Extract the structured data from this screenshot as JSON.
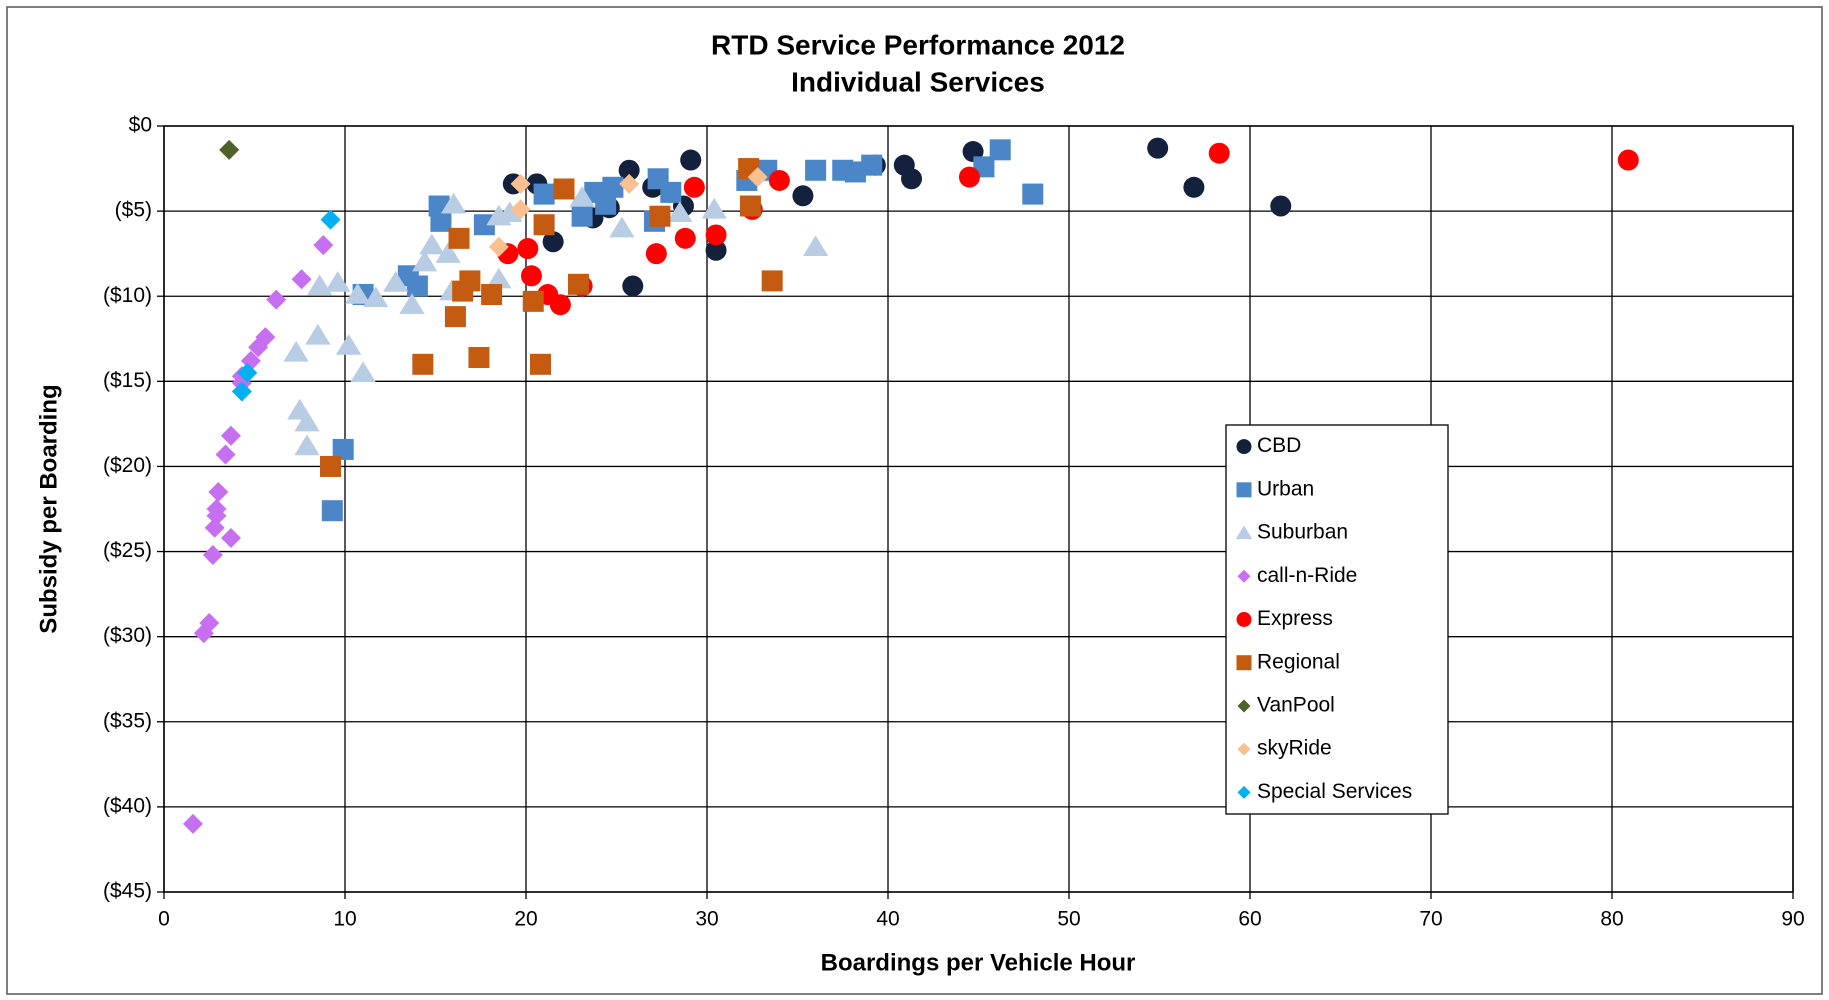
{
  "chart_data": {
    "type": "scatter",
    "title": "RTD Service Performance 2012",
    "subtitle": "Individual Services",
    "x_label": "Boardings per Vehicle Hour",
    "y_label": "Subsidy per Boarding",
    "xlim": [
      0,
      90
    ],
    "xticks": [
      0,
      10,
      20,
      30,
      40,
      50,
      60,
      70,
      80,
      90
    ],
    "ylim": [
      -45,
      0
    ],
    "yticks": [
      {
        "value": 0,
        "label": "$0"
      },
      {
        "value": -5,
        "label": "($5)"
      },
      {
        "value": -10,
        "label": "($10)"
      },
      {
        "value": -15,
        "label": "($15)"
      },
      {
        "value": -20,
        "label": "($20)"
      },
      {
        "value": -25,
        "label": "($25)"
      },
      {
        "value": -30,
        "label": "($30)"
      },
      {
        "value": -35,
        "label": "($35)"
      },
      {
        "value": -40,
        "label": "($40)"
      },
      {
        "value": -45,
        "label": "($45)"
      }
    ],
    "grid": true,
    "series": [
      {
        "name": "CBD",
        "color": "#14213d",
        "marker": "circle",
        "x": [
          19.3,
          20.6,
          21.5,
          25.7,
          25.9,
          23.7,
          24.6,
          29.1,
          30.5,
          28.7,
          35.3,
          39.3,
          40.9,
          41.3,
          44.7,
          54.9,
          56.9,
          61.7,
          27
        ],
        "values": [
          -3.4,
          -3.4,
          -6.8,
          -2.6,
          -9.4,
          -5.4,
          -4.8,
          -2.0,
          -7.3,
          -4.7,
          -4.1,
          -2.3,
          -2.3,
          -3.1,
          -1.5,
          -1.3,
          -3.6,
          -4.7,
          -3.6
        ]
      },
      {
        "name": "Urban",
        "color": "#4a86c8",
        "marker": "square",
        "x": [
          15.2,
          15.3,
          13.5,
          14,
          11,
          9.9,
          9.3,
          17.7,
          21,
          23.1,
          23.8,
          24.8,
          27.3,
          27.1,
          28,
          32.2,
          33.3,
          36,
          37.5,
          38.2,
          39.1,
          45.3,
          46.2,
          48,
          24.4
        ],
        "values": [
          -4.7,
          -5.6,
          -8.8,
          -9.4,
          -9.9,
          -19.0,
          -22.6,
          -5.8,
          -4.0,
          -5.3,
          -3.9,
          -3.6,
          -3.1,
          -5.6,
          -3.9,
          -3.2,
          -2.6,
          -2.6,
          -2.6,
          -2.7,
          -2.3,
          -2.4,
          -1.4,
          -4.0,
          -4.6
        ]
      },
      {
        "name": "Suburban",
        "color": "#b8cce4",
        "marker": "triangle",
        "x": [
          16,
          14.8,
          14.4,
          15.7,
          13.7,
          12.8,
          11.7,
          10.7,
          9.6,
          8.6,
          8.5,
          10.2,
          11,
          7.3,
          7.5,
          7.9,
          7.9,
          18.5,
          19.1,
          18.5,
          23.1,
          25.3,
          28.5,
          30.4,
          36,
          15.9
        ],
        "values": [
          -4.6,
          -7.0,
          -8.0,
          -7.5,
          -10.5,
          -9.2,
          -10.1,
          -9.9,
          -9.2,
          -9.4,
          -12.3,
          -12.9,
          -14.5,
          -13.3,
          -16.7,
          -17.4,
          -18.8,
          -5.3,
          -5.1,
          -9.0,
          -4.2,
          -6.0,
          -5.1,
          -4.9,
          -7.1,
          -9.7
        ]
      },
      {
        "name": "call-n-Ride",
        "color": "#c66ff0",
        "marker": "diamond",
        "x": [
          8.8,
          7.6,
          6.2,
          5.6,
          5.2,
          4.8,
          4.3,
          4.3,
          3.7,
          3.4,
          3.0,
          2.9,
          2.9,
          2.8,
          3.7,
          2.7,
          2.5,
          2.2,
          1.6
        ],
        "values": [
          -7.0,
          -9.0,
          -10.2,
          -12.4,
          -13.0,
          -13.8,
          -14.7,
          -15.1,
          -18.2,
          -19.3,
          -21.5,
          -22.5,
          -22.9,
          -23.6,
          -24.2,
          -25.2,
          -29.2,
          -29.8,
          -41.0
        ]
      },
      {
        "name": "Express",
        "color": "#ff0000",
        "marker": "circle",
        "x": [
          19,
          20.1,
          20.3,
          21.2,
          21.9,
          23.1,
          27.2,
          28.8,
          29.3,
          30.5,
          32.5,
          34,
          44.5,
          58.3,
          80.9
        ],
        "values": [
          -7.5,
          -7.2,
          -8.8,
          -9.9,
          -10.5,
          -9.4,
          -7.5,
          -6.6,
          -3.6,
          -6.4,
          -4.9,
          -3.2,
          -3.0,
          -1.6,
          -2.0
        ]
      },
      {
        "name": "Regional",
        "color": "#c55a11",
        "marker": "square",
        "x": [
          14.3,
          16.1,
          16.3,
          16.5,
          16.9,
          17.4,
          18.1,
          20.4,
          21,
          20.8,
          22.1,
          22.9,
          27.4,
          32.3,
          32.4,
          33.6,
          9.2
        ],
        "values": [
          -14.0,
          -11.2,
          -6.6,
          -9.7,
          -9.1,
          -13.6,
          -9.9,
          -10.3,
          -5.8,
          -14.0,
          -3.7,
          -9.3,
          -5.3,
          -2.5,
          -4.7,
          -9.1,
          -20.0
        ]
      },
      {
        "name": "VanPool",
        "color": "#4f6228",
        "marker": "diamond",
        "x": [
          3.6
        ],
        "values": [
          -1.4
        ]
      },
      {
        "name": "skyRide",
        "color": "#fac090",
        "marker": "diamond",
        "x": [
          19.7,
          19.7,
          18.5,
          25.7,
          32.8
        ],
        "values": [
          -3.4,
          -4.9,
          -7.1,
          -3.4,
          -3.0
        ]
      },
      {
        "name": "Special Services",
        "color": "#00b0f0",
        "marker": "diamond",
        "x": [
          9.2,
          4.6,
          4.3
        ],
        "values": [
          -5.5,
          -14.5,
          -15.6
        ]
      }
    ]
  }
}
